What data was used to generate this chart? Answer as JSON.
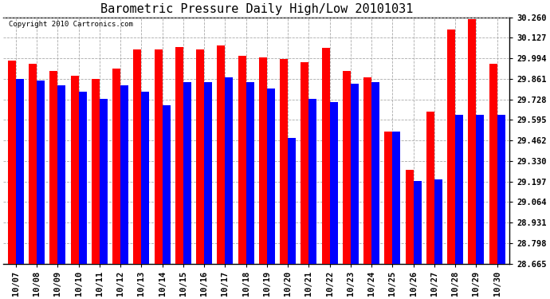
{
  "title": "Barometric Pressure Daily High/Low 20101031",
  "copyright": "Copyright 2010 Cartronics.com",
  "dates": [
    "10/07",
    "10/08",
    "10/09",
    "10/10",
    "10/11",
    "10/12",
    "10/13",
    "10/14",
    "10/15",
    "10/16",
    "10/17",
    "10/18",
    "10/19",
    "10/20",
    "10/21",
    "10/22",
    "10/23",
    "10/24",
    "10/25",
    "10/26",
    "10/27",
    "10/28",
    "10/29",
    "10/30"
  ],
  "highs": [
    29.98,
    29.96,
    29.91,
    29.88,
    29.86,
    29.93,
    30.05,
    30.05,
    30.07,
    30.05,
    30.08,
    30.01,
    30.0,
    29.99,
    29.97,
    30.06,
    29.91,
    29.87,
    29.52,
    29.27,
    29.65,
    30.18,
    30.25,
    29.96
  ],
  "lows": [
    29.86,
    29.85,
    29.82,
    29.78,
    29.73,
    29.82,
    29.78,
    29.69,
    29.84,
    29.84,
    29.87,
    29.84,
    29.8,
    29.48,
    29.73,
    29.71,
    29.83,
    29.84,
    29.52,
    29.2,
    29.21,
    29.63,
    29.63,
    29.63
  ],
  "high_color": "#ff0000",
  "low_color": "#0000ff",
  "bg_color": "#ffffff",
  "grid_color": "#aaaaaa",
  "ymin": 28.665,
  "ymax": 30.26,
  "yticks": [
    28.665,
    28.798,
    28.931,
    29.064,
    29.197,
    29.33,
    29.462,
    29.595,
    29.728,
    29.861,
    29.994,
    30.127,
    30.26
  ],
  "title_fontsize": 11,
  "tick_fontsize": 7.5,
  "bar_width": 0.38
}
